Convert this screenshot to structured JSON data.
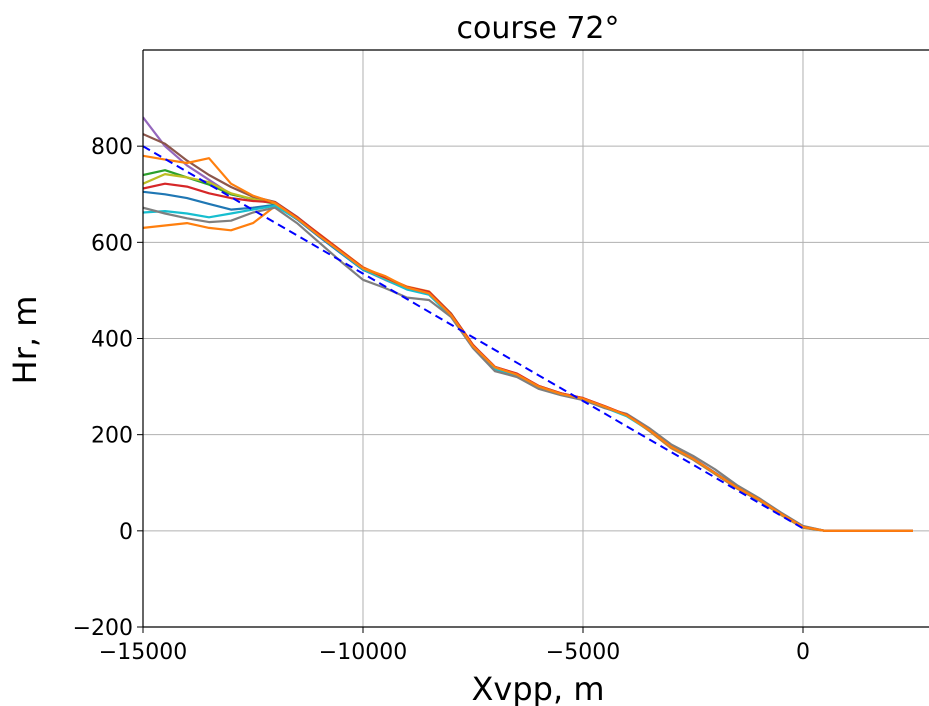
{
  "chart_data": {
    "type": "line",
    "title": "course 72°",
    "x_label": "Xvpp, m",
    "y_label": "Hr, m",
    "x": [
      -15000,
      -14500,
      -14000,
      -13500,
      -13000,
      -12500,
      -12000,
      -11500,
      -11000,
      -10500,
      -10000,
      -9500,
      -9000,
      -8500,
      -8000,
      -7500,
      -7000,
      -6500,
      -6000,
      -5500,
      -5000,
      -4500,
      -4000,
      -3500,
      -3000,
      -2500,
      -2000,
      -1500,
      -1000,
      -500,
      0,
      500,
      1000,
      1500,
      2000,
      2500
    ],
    "series": [
      {
        "color": "#ff7f0e",
        "values": [
          630,
          635,
          640,
          630,
          625,
          640,
          675,
          652,
          618,
          583,
          548,
          528,
          508,
          498,
          452,
          387,
          338,
          322,
          298,
          284,
          276,
          259,
          241,
          208,
          172,
          148,
          118,
          88,
          63,
          33,
          6,
          0,
          0,
          0,
          0,
          0
        ]
      },
      {
        "color": "#9467bd",
        "values": [
          860,
          800,
          760,
          730,
          700,
          690,
          682,
          649,
          613,
          578,
          543,
          522,
          503,
          492,
          448,
          383,
          339,
          324,
          299,
          286,
          274,
          257,
          239,
          211,
          176,
          151,
          121,
          91,
          66,
          36,
          9,
          0,
          0,
          0,
          0,
          0
        ]
      },
      {
        "color": "#8c564b",
        "values": [
          825,
          805,
          770,
          740,
          715,
          695,
          684,
          653,
          617,
          582,
          547,
          527,
          507,
          497,
          452,
          386,
          341,
          326,
          301,
          286,
          276,
          258,
          240,
          209,
          174,
          149,
          119,
          89,
          64,
          34,
          7,
          0,
          0,
          0,
          0,
          0
        ]
      },
      {
        "color": "#2ca02c",
        "values": [
          740,
          750,
          735,
          720,
          700,
          690,
          680,
          651,
          616,
          581,
          546,
          526,
          506,
          496,
          451,
          384,
          338,
          324,
          296,
          283,
          273,
          257,
          239,
          210,
          176,
          150,
          120,
          90,
          65,
          35,
          8,
          0,
          0,
          0,
          0,
          0
        ]
      },
      {
        "color": "#1f77b4",
        "values": [
          705,
          700,
          692,
          680,
          668,
          672,
          678,
          648,
          612,
          577,
          543,
          524,
          503,
          493,
          447,
          382,
          337,
          323,
          299,
          285,
          275,
          258,
          240,
          211,
          175,
          150,
          121,
          91,
          66,
          36,
          9,
          0,
          0,
          0,
          0,
          0
        ]
      },
      {
        "color": "#17becf",
        "values": [
          662,
          665,
          660,
          652,
          660,
          668,
          676,
          649,
          614,
          579,
          544,
          523,
          502,
          491,
          446,
          383,
          336,
          322,
          298,
          284,
          274,
          256,
          238,
          209,
          174,
          149,
          119,
          89,
          64,
          34,
          7,
          0,
          0,
          0,
          0,
          0
        ]
      },
      {
        "color": "#7f7f7f",
        "values": [
          672,
          660,
          650,
          642,
          645,
          662,
          672,
          640,
          600,
          560,
          522,
          505,
          485,
          480,
          445,
          380,
          332,
          320,
          295,
          282,
          272,
          255,
          243,
          214,
          180,
          156,
          128,
          95,
          68,
          38,
          10,
          0,
          0,
          0,
          0,
          0
        ]
      },
      {
        "color": "#bcbd22",
        "values": [
          722,
          742,
          735,
          725,
          702,
          690,
          681,
          651,
          616,
          581,
          546,
          526,
          506,
          496,
          450,
          385,
          340,
          325,
          300,
          285,
          275,
          258,
          240,
          210,
          175,
          150,
          120,
          90,
          65,
          35,
          8,
          0,
          0,
          0,
          0,
          0
        ]
      },
      {
        "color": "#d62728",
        "values": [
          712,
          722,
          716,
          702,
          692,
          686,
          683,
          652,
          617,
          582,
          547,
          527,
          507,
          497,
          451,
          386,
          341,
          327,
          301,
          286,
          276,
          259,
          241,
          210,
          175,
          150,
          120,
          90,
          65,
          35,
          8,
          0,
          0,
          0,
          0,
          0
        ]
      },
      {
        "color": "#ff7f0e",
        "values": [
          780,
          772,
          765,
          775,
          722,
          697,
          682,
          650,
          614,
          580,
          546,
          530,
          506,
          494,
          449,
          384,
          340,
          325,
          300,
          285,
          275,
          258,
          240,
          210,
          175,
          150,
          120,
          90,
          65,
          35,
          8,
          0,
          0,
          0,
          0,
          0
        ]
      },
      {
        "color": "#0000ff",
        "linestyle": "dashed",
        "x": [
          -15000,
          0
        ],
        "values": [
          800,
          5
        ]
      }
    ],
    "xlim": [
      -15000,
      2864
    ],
    "ylim": [
      -200,
      1000
    ],
    "xticks": [
      {
        "value": -15000,
        "label": "−15000"
      },
      {
        "value": -10000,
        "label": "−10000"
      },
      {
        "value": -5000,
        "label": "−5000"
      },
      0
    ],
    "yticks": [
      {
        "value": -200,
        "label": "−200"
      },
      0,
      200,
      400,
      600,
      800
    ],
    "grid": true
  }
}
